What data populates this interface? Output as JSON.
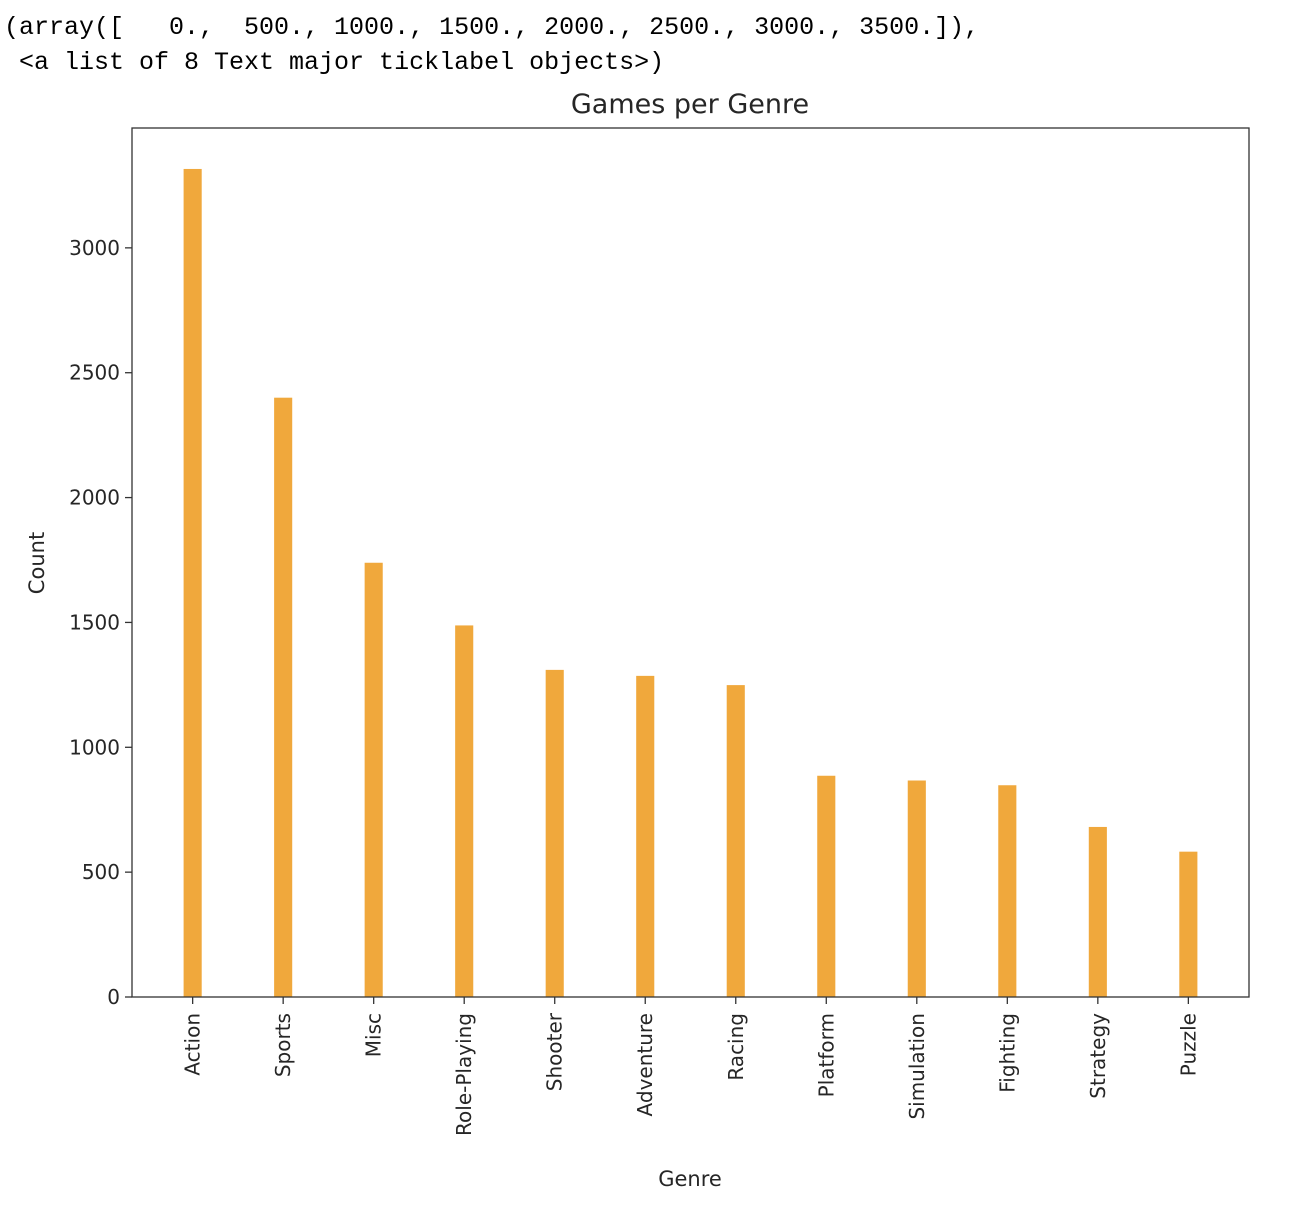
{
  "output_text": [
    "(array([   0.,  500., 1000., 1500., 2000., 2500., 3000., 3500.]),",
    " <a list of 8 Text major ticklabel objects>)"
  ],
  "chart_data": {
    "type": "bar",
    "title": "Games per Genre",
    "x_label": "Genre",
    "y_label": "Count",
    "categories": [
      "Action",
      "Sports",
      "Misc",
      "Role-Playing",
      "Shooter",
      "Adventure",
      "Racing",
      "Platform",
      "Simulation",
      "Fighting",
      "Strategy",
      "Puzzle"
    ],
    "values": [
      3316,
      2400,
      1739,
      1488,
      1310,
      1286,
      1249,
      886,
      867,
      848,
      681,
      582
    ],
    "color": "#f0a83c",
    "ylim": [
      0,
      3480
    ],
    "yticks": [
      0,
      500,
      1000,
      1500,
      2000,
      2500,
      3000
    ],
    "grid": false
  }
}
